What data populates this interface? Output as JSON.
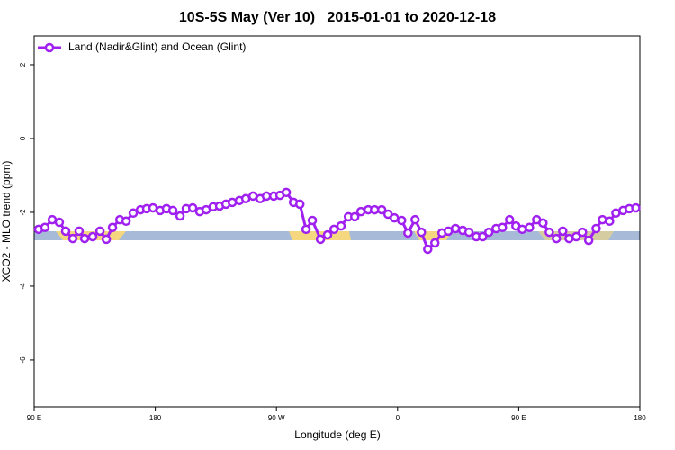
{
  "chart_data": {
    "type": "line",
    "title": "10S-5S May (Ver 10)   2015-01-01 to 2020-12-18",
    "x_label": "Longitude (deg E)",
    "y_label": "XCO2 - MLO trend (ppm)",
    "xlim": [
      90,
      540
    ],
    "ylim": [
      -7.27,
      2.78
    ],
    "xticks": [
      {
        "value": 90,
        "label": "90 E"
      },
      180,
      {
        "value": 270,
        "label": "90 W"
      },
      {
        "value": 360,
        "label": "0"
      },
      {
        "value": 450,
        "label": "90 E"
      },
      {
        "value": 540,
        "label": "180"
      }
    ],
    "yticks": [
      2,
      0,
      -2,
      -4,
      -6
    ],
    "x": [
      93.3,
      98,
      103.4,
      108.7,
      113.4,
      118.7,
      123.4,
      127.5,
      133.5,
      138.9,
      143.6,
      148.2,
      153.6,
      158.3,
      163.6,
      169,
      173.6,
      178.3,
      183.6,
      188.3,
      193,
      198.4,
      203,
      207.8,
      213,
      217.8,
      223,
      227.8,
      232.5,
      237.2,
      242.5,
      247.2,
      252.6,
      257.9,
      262.6,
      268,
      272.6,
      277.3,
      282.7,
      287.4,
      292,
      296.7,
      302.7,
      308,
      312.8,
      318,
      323.5,
      328.2,
      332.8,
      338.2,
      342.9,
      348.2,
      352.9,
      357.6,
      363,
      367.7,
      373,
      377.7,
      382.4,
      387.7,
      393,
      397.7,
      403,
      408.4,
      413,
      418.5,
      423.2,
      427.8,
      433.2,
      437.9,
      443.2,
      447.9,
      452.6,
      458,
      463.3,
      468,
      472.7,
      478,
      482.7,
      487.4,
      492.7,
      497.4,
      502,
      507.5,
      512.2,
      517.5,
      522.2,
      527.5,
      532.2,
      537
    ],
    "series": [
      {
        "name": "Land (Nadir&Glint) and Ocean (Glint)",
        "color": "#a020f0",
        "values": [
          -2.46,
          -2.41,
          -2.2,
          -2.27,
          -2.51,
          -2.71,
          -2.51,
          -2.71,
          -2.66,
          -2.51,
          -2.73,
          -2.41,
          -2.2,
          -2.24,
          -2.02,
          -1.93,
          -1.9,
          -1.88,
          -1.95,
          -1.9,
          -1.95,
          -2.1,
          -1.9,
          -1.88,
          -1.98,
          -1.93,
          -1.85,
          -1.83,
          -1.78,
          -1.73,
          -1.68,
          -1.63,
          -1.56,
          -1.63,
          -1.56,
          -1.56,
          -1.54,
          -1.46,
          -1.73,
          -1.78,
          -2.46,
          -2.22,
          -2.73,
          -2.61,
          -2.46,
          -2.37,
          -2.12,
          -2.12,
          -1.98,
          -1.93,
          -1.93,
          -1.93,
          -2.05,
          -2.15,
          -2.22,
          -2.56,
          -2.2,
          -2.54,
          -3.0,
          -2.83,
          -2.56,
          -2.51,
          -2.44,
          -2.49,
          -2.54,
          -2.66,
          -2.66,
          -2.54,
          -2.44,
          -2.41,
          -2.2,
          -2.37,
          -2.46,
          -2.41,
          -2.2,
          -2.29,
          -2.54,
          -2.71,
          -2.51,
          -2.71,
          -2.66,
          -2.54,
          -2.76,
          -2.44,
          -2.2,
          -2.24,
          -2.02,
          -1.95,
          -1.9,
          -1.88
        ]
      }
    ]
  }
}
